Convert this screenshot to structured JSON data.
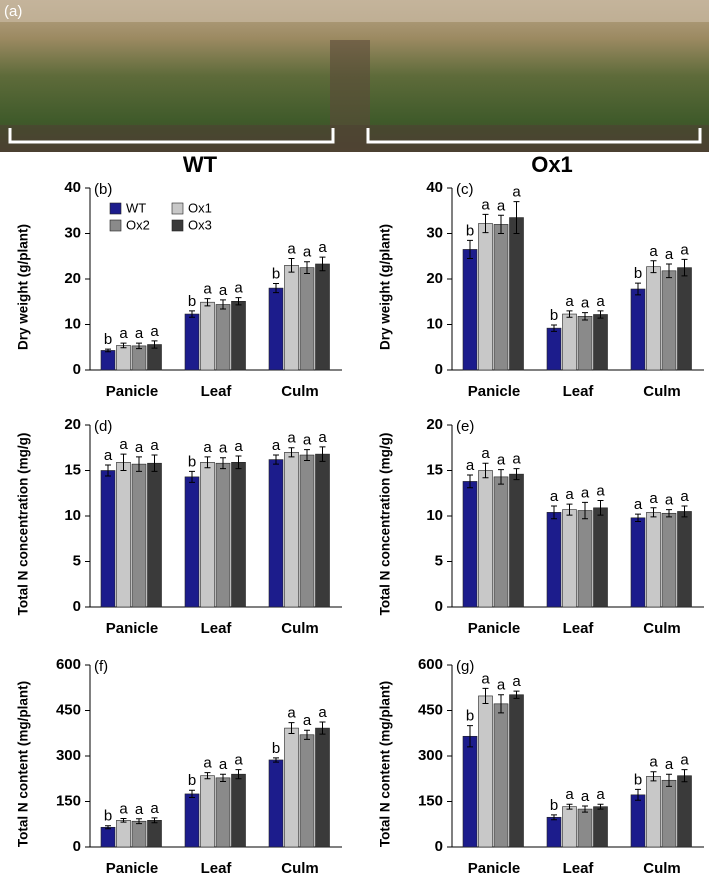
{
  "photo": {
    "panel_label": "(a)"
  },
  "group_titles": [
    "WT",
    "Ox1"
  ],
  "chart_data": [
    {
      "type": "bar",
      "panel_label": "(b)",
      "ylabel": "Dry weight (g/plant)",
      "legend": true,
      "categories": [
        "Panicle",
        "Leaf",
        "Culm"
      ],
      "ylim": [
        0,
        40
      ],
      "yticks": [
        0,
        10,
        20,
        30,
        40
      ],
      "series": [
        {
          "name": "WT",
          "color": "#1c1c8c",
          "values": [
            4.3,
            12.3,
            18.0
          ],
          "errors": [
            0.3,
            0.7,
            1.0
          ],
          "letters": [
            "b",
            "b",
            "b"
          ]
        },
        {
          "name": "Ox1",
          "color": "#c8c8c8",
          "values": [
            5.4,
            14.9,
            23.0
          ],
          "errors": [
            0.5,
            0.8,
            1.5
          ],
          "letters": [
            "a",
            "a",
            "a"
          ]
        },
        {
          "name": "Ox2",
          "color": "#8a8a8a",
          "values": [
            5.3,
            14.4,
            22.5
          ],
          "errors": [
            0.6,
            1.0,
            1.3
          ],
          "letters": [
            "a",
            "a",
            "a"
          ]
        },
        {
          "name": "Ox3",
          "color": "#3a3a3a",
          "values": [
            5.6,
            15.1,
            23.3
          ],
          "errors": [
            0.8,
            0.8,
            1.5
          ],
          "letters": [
            "a",
            "a",
            "a"
          ]
        }
      ]
    },
    {
      "type": "bar",
      "panel_label": "(c)",
      "ylabel": "Dry weight (g/plant)",
      "legend": false,
      "categories": [
        "Panicle",
        "Leaf",
        "Culm"
      ],
      "ylim": [
        0,
        40
      ],
      "yticks": [
        0,
        10,
        20,
        30,
        40
      ],
      "series": [
        {
          "name": "WT",
          "color": "#1c1c8c",
          "values": [
            26.5,
            9.2,
            17.8
          ],
          "errors": [
            2.0,
            0.7,
            1.3
          ],
          "letters": [
            "b",
            "b",
            "b"
          ]
        },
        {
          "name": "Ox1",
          "color": "#c8c8c8",
          "values": [
            32.2,
            12.3,
            22.7
          ],
          "errors": [
            2.0,
            0.7,
            1.3
          ],
          "letters": [
            "a",
            "a",
            "a"
          ]
        },
        {
          "name": "Ox2",
          "color": "#8a8a8a",
          "values": [
            32.0,
            11.8,
            21.8
          ],
          "errors": [
            2.0,
            0.8,
            1.5
          ],
          "letters": [
            "a",
            "a",
            "a"
          ]
        },
        {
          "name": "Ox3",
          "color": "#3a3a3a",
          "values": [
            33.5,
            12.2,
            22.5
          ],
          "errors": [
            3.5,
            0.8,
            1.8
          ],
          "letters": [
            "a",
            "a",
            "a"
          ]
        }
      ]
    },
    {
      "type": "bar",
      "panel_label": "(d)",
      "ylabel": "Total N concentration (mg/g)",
      "legend": false,
      "categories": [
        "Panicle",
        "Leaf",
        "Culm"
      ],
      "ylim": [
        0,
        20
      ],
      "yticks": [
        0,
        5,
        10,
        15,
        20
      ],
      "series": [
        {
          "name": "WT",
          "color": "#1c1c8c",
          "values": [
            15.0,
            14.3,
            16.2
          ],
          "errors": [
            0.6,
            0.6,
            0.5
          ],
          "letters": [
            "a",
            "b",
            "a"
          ]
        },
        {
          "name": "Ox1",
          "color": "#c8c8c8",
          "values": [
            15.9,
            15.9,
            17.0
          ],
          "errors": [
            0.9,
            0.6,
            0.5
          ],
          "letters": [
            "a",
            "a",
            "a"
          ]
        },
        {
          "name": "Ox2",
          "color": "#8a8a8a",
          "values": [
            15.7,
            15.8,
            16.7
          ],
          "errors": [
            0.8,
            0.6,
            0.6
          ],
          "letters": [
            "a",
            "a",
            "a"
          ]
        },
        {
          "name": "Ox3",
          "color": "#3a3a3a",
          "values": [
            15.8,
            15.9,
            16.8
          ],
          "errors": [
            0.9,
            0.7,
            0.8
          ],
          "letters": [
            "a",
            "a",
            "a"
          ]
        }
      ]
    },
    {
      "type": "bar",
      "panel_label": "(e)",
      "ylabel": "Total N concentration (mg/g)",
      "legend": false,
      "categories": [
        "Panicle",
        "Leaf",
        "Culm"
      ],
      "ylim": [
        0,
        20
      ],
      "yticks": [
        0,
        5,
        10,
        15,
        20
      ],
      "series": [
        {
          "name": "WT",
          "color": "#1c1c8c",
          "values": [
            13.8,
            10.4,
            9.8
          ],
          "errors": [
            0.7,
            0.7,
            0.4
          ],
          "letters": [
            "a",
            "a",
            "a"
          ]
        },
        {
          "name": "Ox1",
          "color": "#c8c8c8",
          "values": [
            15.0,
            10.7,
            10.4
          ],
          "errors": [
            0.8,
            0.6,
            0.5
          ],
          "letters": [
            "a",
            "a",
            "a"
          ]
        },
        {
          "name": "Ox2",
          "color": "#8a8a8a",
          "values": [
            14.3,
            10.6,
            10.3
          ],
          "errors": [
            0.8,
            0.9,
            0.4
          ],
          "letters": [
            "a",
            "a",
            "a"
          ]
        },
        {
          "name": "Ox3",
          "color": "#3a3a3a",
          "values": [
            14.6,
            10.9,
            10.5
          ],
          "errors": [
            0.6,
            0.8,
            0.6
          ],
          "letters": [
            "a",
            "a",
            "a"
          ]
        }
      ]
    },
    {
      "type": "bar",
      "panel_label": "(f)",
      "ylabel": "Total N content (mg/plant)",
      "legend": false,
      "categories": [
        "Panicle",
        "Leaf",
        "Culm"
      ],
      "ylim": [
        0,
        600
      ],
      "yticks": [
        0,
        150,
        300,
        450,
        600
      ],
      "series": [
        {
          "name": "WT",
          "color": "#1c1c8c",
          "values": [
            65,
            175,
            287
          ],
          "errors": [
            5,
            12,
            7
          ],
          "letters": [
            "b",
            "b",
            "b"
          ]
        },
        {
          "name": "Ox1",
          "color": "#c8c8c8",
          "values": [
            88,
            235,
            392
          ],
          "errors": [
            6,
            10,
            18
          ],
          "letters": [
            "a",
            "a",
            "a"
          ]
        },
        {
          "name": "Ox2",
          "color": "#8a8a8a",
          "values": [
            85,
            228,
            370
          ],
          "errors": [
            8,
            12,
            15
          ],
          "letters": [
            "a",
            "a",
            "a"
          ]
        },
        {
          "name": "Ox3",
          "color": "#3a3a3a",
          "values": [
            88,
            240,
            392
          ],
          "errors": [
            8,
            15,
            20
          ],
          "letters": [
            "a",
            "a",
            "a"
          ]
        }
      ]
    },
    {
      "type": "bar",
      "panel_label": "(g)",
      "ylabel": "Total N content (mg/plant)",
      "legend": false,
      "categories": [
        "Panicle",
        "Leaf",
        "Culm"
      ],
      "ylim": [
        0,
        600
      ],
      "yticks": [
        0,
        150,
        300,
        450,
        600
      ],
      "series": [
        {
          "name": "WT",
          "color": "#1c1c8c",
          "values": [
            365,
            98,
            172
          ],
          "errors": [
            35,
            8,
            18
          ],
          "letters": [
            "b",
            "b",
            "b"
          ]
        },
        {
          "name": "Ox1",
          "color": "#c8c8c8",
          "values": [
            498,
            133,
            233
          ],
          "errors": [
            25,
            8,
            15
          ],
          "letters": [
            "a",
            "a",
            "a"
          ]
        },
        {
          "name": "Ox2",
          "color": "#8a8a8a",
          "values": [
            472,
            125,
            220
          ],
          "errors": [
            30,
            10,
            20
          ],
          "letters": [
            "a",
            "a",
            "a"
          ]
        },
        {
          "name": "Ox3",
          "color": "#3a3a3a",
          "values": [
            502,
            133,
            235
          ],
          "errors": [
            12,
            8,
            20
          ],
          "letters": [
            "a",
            "a",
            "a"
          ]
        }
      ]
    }
  ]
}
